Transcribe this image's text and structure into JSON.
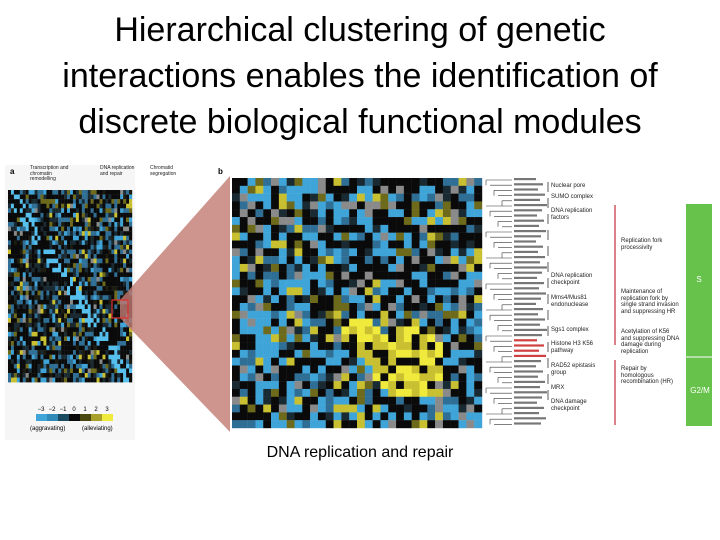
{
  "title_lines": [
    "Hierarchical clustering of genetic",
    "interactions enables the identification of",
    "discrete biological functional modules"
  ],
  "figure": {
    "panel_a": {
      "label": "a",
      "groups": [
        "Transcription and chromatin remodelling",
        "DNA replication and repair",
        "Chromatid segregation"
      ],
      "scale": [
        "−3",
        "−2",
        "−1",
        "0",
        "1",
        "2",
        "3"
      ],
      "scale_notes": [
        "(aggravating)",
        "(alleviating)"
      ]
    },
    "panel_b": {
      "label": "b",
      "modules": [
        "Nuclear pore",
        "SUMO complex",
        "DNA replication factors",
        "Replication fork processivity",
        "DNA replication checkpoint",
        "Mms4/Mus81 endonuclease",
        "Maintenance of replication fork by single strand invasion and suppressing HR",
        "Sgs1 complex",
        "Histone H3 K56 pathway",
        "Acetylation of K56 and suppressing DNA damage during replication",
        "RAD52 epistasis group",
        "MRX",
        "Repair by homologous recombination (HR)",
        "DNA damage checkpoint"
      ],
      "phases": [
        "S",
        "G2/M"
      ]
    }
  },
  "caption": "DNA replication and repair"
}
